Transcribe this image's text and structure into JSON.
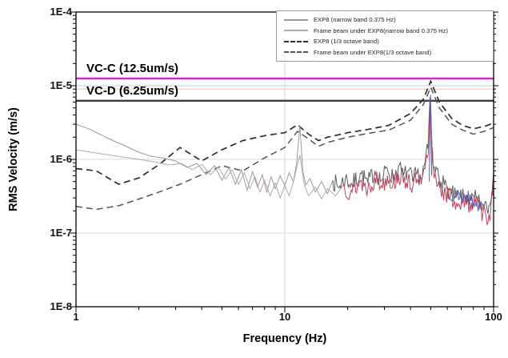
{
  "chart_data": {
    "type": "line",
    "title": "",
    "xlabel": "Frequency (Hz)",
    "ylabel": "RMS Velocity (m/s)",
    "xscale": "log",
    "yscale": "log",
    "xlim": [
      1,
      100
    ],
    "ylim": [
      1e-08,
      0.0001
    ],
    "x_ticks": [
      {
        "v": 1,
        "label": "1"
      },
      {
        "v": 10,
        "label": "10"
      },
      {
        "v": 100,
        "label": "100"
      }
    ],
    "y_ticks": [
      {
        "v": 0.0001,
        "label": "1E-4"
      },
      {
        "v": 1e-05,
        "label": "1E-5"
      },
      {
        "v": 1e-06,
        "label": "1E-6"
      },
      {
        "v": 1e-07,
        "label": "1E-7"
      },
      {
        "v": 1e-08,
        "label": "1E-8"
      }
    ],
    "grid": {
      "color": "#d9d9d9",
      "y_values": [
        1e-06,
        1e-07
      ],
      "x_values": [
        10
      ]
    },
    "legend_position": "top-right-inside",
    "reference_lines": [
      {
        "id": "vc-c",
        "label": "VC-C (12.5um/s)",
        "value": 1.25e-05,
        "color": "#e121ce",
        "width": 2.4
      },
      {
        "id": "vc-d",
        "label": "VC-D (6.25um/s)",
        "value": 6.25e-06,
        "color": "#3c3c3c",
        "width": 2.4
      },
      {
        "id": "faint-cyan",
        "label": "",
        "value": 1e-05,
        "color": "#bedde0",
        "width": 1.3
      },
      {
        "id": "faint-pink",
        "label": "",
        "value": 9e-06,
        "color": "#f2cfcf",
        "width": 1.3
      }
    ],
    "series": [
      {
        "id": "exp8-narrow",
        "name": "EXP8 (narrow band 0.375 Hz)",
        "style": "solid",
        "color": "#9a9a9a",
        "noise_color": "#5d5d5d",
        "width": 1,
        "noise_from": 17,
        "noise_amp": 0.13,
        "noise_seed": 7,
        "points": [
          [
            1,
            3e-06
          ],
          [
            1.15,
            2.6e-06
          ],
          [
            1.3,
            2.2e-06
          ],
          [
            1.5,
            1.8e-06
          ],
          [
            1.7,
            1.55e-06
          ],
          [
            2.0,
            1.25e-06
          ],
          [
            2.3,
            1.1e-06
          ],
          [
            2.6,
            1.05e-06
          ],
          [
            3.0,
            9.5e-07
          ],
          [
            3.4,
            7.8e-07
          ],
          [
            3.8,
            8.8e-07
          ],
          [
            4.2,
            6.2e-07
          ],
          [
            4.6,
            8.2e-07
          ],
          [
            5.0,
            5.2e-07
          ],
          [
            5.4,
            7.8e-07
          ],
          [
            5.8,
            4.6e-07
          ],
          [
            6.2,
            7.2e-07
          ],
          [
            6.6,
            3.8e-07
          ],
          [
            7.0,
            6.8e-07
          ],
          [
            7.4,
            4.2e-07
          ],
          [
            7.8,
            6.2e-07
          ],
          [
            8.2,
            3.6e-07
          ],
          [
            8.6,
            5.8e-07
          ],
          [
            9.0,
            4e-07
          ],
          [
            9.5,
            6e-07
          ],
          [
            10.0,
            4.4e-07
          ],
          [
            10.5,
            6.6e-07
          ],
          [
            11.0,
            5e-07
          ],
          [
            11.4,
            9e-07
          ],
          [
            11.8,
            2.9e-06
          ],
          [
            12.2,
            7e-07
          ],
          [
            12.6,
            4.5e-07
          ],
          [
            13.2,
            5.5e-07
          ],
          [
            14,
            3.6e-07
          ],
          [
            15,
            5e-07
          ],
          [
            16,
            3.4e-07
          ],
          [
            17,
            5.2e-07
          ],
          [
            18,
            4.2e-07
          ],
          [
            19.5,
            5.5e-07
          ],
          [
            21,
            4.5e-07
          ],
          [
            23,
            6.5e-07
          ],
          [
            25,
            4.8e-07
          ],
          [
            27,
            7e-07
          ],
          [
            29,
            5.2e-07
          ],
          [
            31,
            7.5e-07
          ],
          [
            33,
            5.5e-07
          ],
          [
            35,
            8e-07
          ],
          [
            37,
            6e-07
          ],
          [
            39,
            7e-07
          ],
          [
            41,
            5e-07
          ],
          [
            43,
            6.5e-07
          ],
          [
            45,
            5.5e-07
          ],
          [
            47,
            9e-07
          ],
          [
            48.5,
            1.4e-06
          ],
          [
            49.6,
            7e-06
          ],
          [
            50.4,
            2.5e-06
          ],
          [
            51,
            9e-07
          ],
          [
            52.5,
            6.5e-07
          ],
          [
            54,
            7.5e-07
          ],
          [
            56,
            5e-07
          ],
          [
            58,
            4.5e-07
          ],
          [
            60,
            4e-07
          ],
          [
            63,
            3.4e-07
          ],
          [
            66,
            3e-07
          ],
          [
            69,
            3.3e-07
          ],
          [
            72,
            2.9e-07
          ],
          [
            75,
            3.1e-07
          ],
          [
            78,
            2.7e-07
          ],
          [
            81,
            3e-07
          ],
          [
            84,
            2.6e-07
          ],
          [
            87,
            2.4e-07
          ],
          [
            90,
            2.3e-07
          ],
          [
            93,
            2.1e-07
          ],
          [
            96,
            2.4e-07
          ],
          [
            98,
            3.2e-07
          ],
          [
            100,
            6.8e-07
          ]
        ]
      },
      {
        "id": "frame-narrow",
        "name": "Frame beam under EXP8(narrow band 0.375 Hz)",
        "style": "solid",
        "color": "#b9a6a6",
        "noise_color": "#bd4360",
        "width": 1,
        "noise_from": 18,
        "noise_amp": 0.14,
        "noise_seed": 13,
        "points": [
          [
            1,
            1.35e-06
          ],
          [
            1.3,
            1.2e-06
          ],
          [
            1.6,
            1.1e-06
          ],
          [
            2.0,
            1e-06
          ],
          [
            2.4,
            9.2e-07
          ],
          [
            2.8,
            8.4e-07
          ],
          [
            3.2,
            8.8e-07
          ],
          [
            3.6,
            7.2e-07
          ],
          [
            4.0,
            8.6e-07
          ],
          [
            4.4,
            6.2e-07
          ],
          [
            4.8,
            7.8e-07
          ],
          [
            5.2,
            5.4e-07
          ],
          [
            5.6,
            7.2e-07
          ],
          [
            6.0,
            4.6e-07
          ],
          [
            6.4,
            6.6e-07
          ],
          [
            6.8,
            4e-07
          ],
          [
            7.2,
            5.8e-07
          ],
          [
            7.6,
            3.6e-07
          ],
          [
            8.0,
            5.2e-07
          ],
          [
            8.5,
            3.2e-07
          ],
          [
            9.0,
            4.8e-07
          ],
          [
            9.5,
            3e-07
          ],
          [
            10,
            4.4e-07
          ],
          [
            10.5,
            3.2e-07
          ],
          [
            11,
            5e-07
          ],
          [
            11.8,
            1.15e-06
          ],
          [
            12.4,
            4.5e-07
          ],
          [
            13,
            3.2e-07
          ],
          [
            14,
            4.2e-07
          ],
          [
            15,
            2.9e-07
          ],
          [
            16,
            4e-07
          ],
          [
            17.5,
            3.2e-07
          ],
          [
            19,
            4.4e-07
          ],
          [
            21,
            3.6e-07
          ],
          [
            23,
            5e-07
          ],
          [
            25,
            4e-07
          ],
          [
            27,
            5.6e-07
          ],
          [
            29,
            4.4e-07
          ],
          [
            31,
            6e-07
          ],
          [
            33,
            4.6e-07
          ],
          [
            35,
            6.2e-07
          ],
          [
            37,
            4.8e-07
          ],
          [
            39,
            5.6e-07
          ],
          [
            41,
            4.2e-07
          ],
          [
            43,
            5.4e-07
          ],
          [
            45,
            4.6e-07
          ],
          [
            47,
            7.5e-07
          ],
          [
            48.7,
            1.2e-06
          ],
          [
            49.8,
            5.5e-06
          ],
          [
            50.6,
            1.5e-06
          ],
          [
            51.4,
            7e-07
          ],
          [
            53,
            5.5e-07
          ],
          [
            55,
            4.4e-07
          ],
          [
            57,
            3.8e-07
          ],
          [
            59,
            3.4e-07
          ],
          [
            62,
            3e-07
          ],
          [
            65,
            2.7e-07
          ],
          [
            68,
            2.5e-07
          ],
          [
            71,
            2.6e-07
          ],
          [
            74,
            2.4e-07
          ],
          [
            77,
            2.6e-07
          ],
          [
            80,
            2.5e-07
          ],
          [
            83,
            2.3e-07
          ],
          [
            86,
            2.1e-07
          ],
          [
            89,
            1.9e-07
          ],
          [
            92,
            1.7e-07
          ],
          [
            95,
            1.8e-07
          ],
          [
            97,
            2.2e-07
          ],
          [
            100,
            5.5e-07
          ]
        ]
      },
      {
        "id": "exp8-octave",
        "name": "EXP8 (1/3 octave band)",
        "style": "dashed",
        "color": "#2e2e2e",
        "width": 1.7,
        "points": [
          [
            1,
            7.5e-07
          ],
          [
            1.25,
            7e-07
          ],
          [
            1.6,
            4.6e-07
          ],
          [
            2,
            5.6e-07
          ],
          [
            2.5,
            8.5e-07
          ],
          [
            3.15,
            1.45e-06
          ],
          [
            4,
            9.5e-07
          ],
          [
            5,
            1.35e-06
          ],
          [
            6.3,
            1.8e-06
          ],
          [
            8,
            2.1e-06
          ],
          [
            10,
            2.3e-06
          ],
          [
            11.5,
            2.95e-06
          ],
          [
            13,
            2.2e-06
          ],
          [
            14.5,
            1.8e-06
          ],
          [
            16,
            2e-06
          ],
          [
            18,
            2.15e-06
          ],
          [
            20,
            2.3e-06
          ],
          [
            25,
            2.55e-06
          ],
          [
            31.5,
            2.9e-06
          ],
          [
            40,
            4.2e-06
          ],
          [
            46,
            6.5e-06
          ],
          [
            50,
            1.15e-05
          ],
          [
            55,
            6e-06
          ],
          [
            63,
            3.6e-06
          ],
          [
            71,
            2.9e-06
          ],
          [
            80,
            2.6e-06
          ],
          [
            90,
            2.8e-06
          ],
          [
            100,
            3.1e-06
          ]
        ]
      },
      {
        "id": "frame-octave",
        "name": "Frame beam under EXP8(1/3 octave band)",
        "style": "dashed",
        "color": "#555555",
        "width": 1.5,
        "points": [
          [
            1,
            2.3e-07
          ],
          [
            1.25,
            2.1e-07
          ],
          [
            1.6,
            2.35e-07
          ],
          [
            2,
            2.9e-07
          ],
          [
            2.5,
            3.6e-07
          ],
          [
            3.15,
            4.6e-07
          ],
          [
            4,
            6.2e-07
          ],
          [
            5,
            8.2e-07
          ],
          [
            6.3,
            7e-07
          ],
          [
            8,
            1.05e-06
          ],
          [
            10,
            1.45e-06
          ],
          [
            11.5,
            2.4e-06
          ],
          [
            13,
            1.9e-06
          ],
          [
            14.5,
            1.5e-06
          ],
          [
            16,
            1.7e-06
          ],
          [
            18,
            1.85e-06
          ],
          [
            20,
            2e-06
          ],
          [
            25,
            2.25e-06
          ],
          [
            31.5,
            2.5e-06
          ],
          [
            40,
            3.4e-06
          ],
          [
            46,
            5.5e-06
          ],
          [
            50,
            9.5e-06
          ],
          [
            55,
            5e-06
          ],
          [
            63,
            3e-06
          ],
          [
            71,
            2.5e-06
          ],
          [
            80,
            2.2e-06
          ],
          [
            90,
            2.4e-06
          ],
          [
            100,
            2.7e-06
          ]
        ]
      },
      {
        "id": "blue-spike",
        "style": "solid",
        "color": "#5a5aae",
        "noise_color": "#5a5aae",
        "width": 1,
        "points": [
          [
            49.2,
            5e-07
          ],
          [
            49.9,
            7.5e-06
          ],
          [
            50.5,
            6e-07
          ]
        ]
      },
      {
        "id": "blue-segment",
        "style": "solid",
        "color": "#5a5aae",
        "noise_color": "#5a5aae",
        "width": 1,
        "noise_from": 1,
        "noise_amp": 0.1,
        "noise_seed": 21,
        "points": [
          [
            62,
            2.8e-07
          ],
          [
            66,
            3.2e-07
          ],
          [
            70,
            2.9e-07
          ],
          [
            74,
            3.3e-07
          ],
          [
            78,
            2.8e-07
          ],
          [
            82,
            2.5e-07
          ],
          [
            86,
            2.3e-07
          ],
          [
            88,
            2.4e-07
          ]
        ]
      }
    ]
  }
}
